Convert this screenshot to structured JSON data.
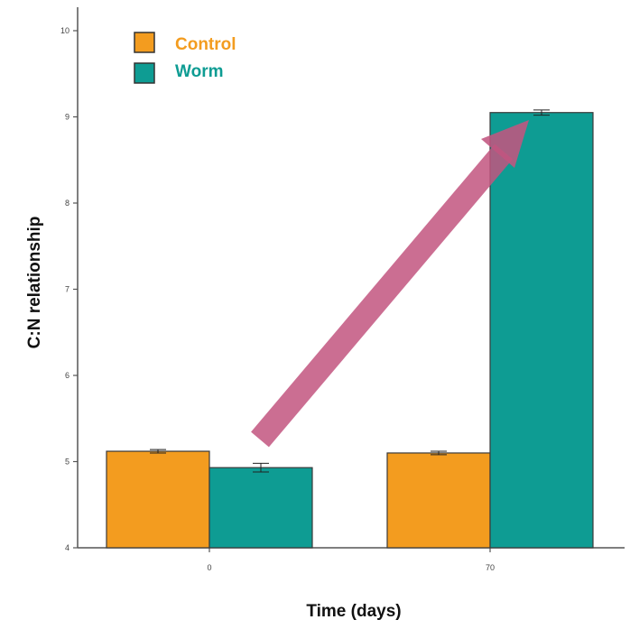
{
  "chart_data": {
    "type": "bar",
    "categories": [
      "0",
      "70"
    ],
    "series": [
      {
        "name": "Control",
        "color": "#F39C1F",
        "values": [
          5.12,
          5.1
        ],
        "errors": [
          0.02,
          0.02
        ]
      },
      {
        "name": "Worm",
        "color": "#0E9C93",
        "values": [
          4.93,
          9.05
        ],
        "errors": [
          0.05,
          0.03
        ]
      }
    ],
    "xlabel": "Time (days)",
    "ylabel": "C:N relationship",
    "ylim": [
      4,
      10.3
    ],
    "yticks": [
      "4",
      "5",
      "6",
      "7",
      "8",
      "9",
      "10"
    ],
    "legend_position": "top-left",
    "grid": false,
    "annotation": {
      "type": "arrow",
      "color": "#C2557F",
      "from": "0",
      "to": "70",
      "meaning": "increase"
    }
  }
}
